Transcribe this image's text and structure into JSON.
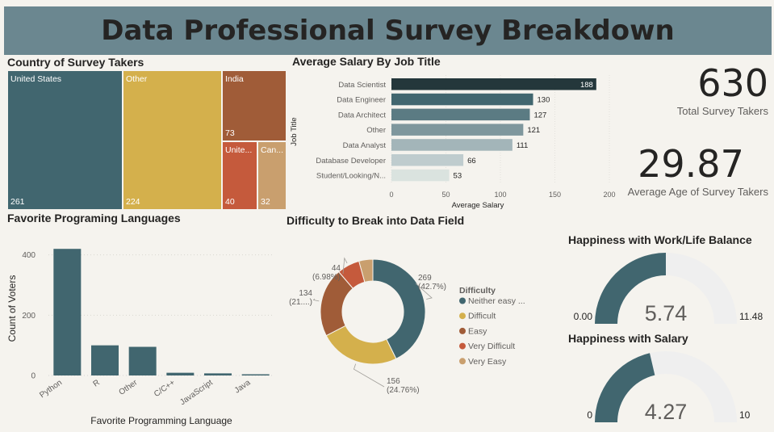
{
  "page": {
    "title": "Data Professional Survey Breakdown"
  },
  "country": {
    "title": "Country of Survey Takers",
    "items": [
      {
        "name": "United States",
        "value": "261",
        "color": "#41666f"
      },
      {
        "name": "Other",
        "value": "224",
        "color": "#d4b04c"
      },
      {
        "name": "India",
        "value": "73",
        "color": "#a05c38"
      },
      {
        "name": "Unite...",
        "value": "40",
        "color": "#c55a3c"
      },
      {
        "name": "Can...",
        "value": "32",
        "color": "#c99f6e"
      }
    ]
  },
  "kpis": {
    "total": {
      "value": "630",
      "label": "Total Survey Takers"
    },
    "age": {
      "value": "29.87",
      "label": "Average Age of Survey Takers"
    }
  },
  "gauges": {
    "work_life": {
      "title": "Happiness with Work/Life Balance",
      "value": "5.74",
      "min": "0.00",
      "max": "11.48",
      "fraction": 0.5,
      "color": "#41666f",
      "track": "#efefef"
    },
    "salary": {
      "title": "Happiness with Salary",
      "value": "4.27",
      "min": "0",
      "max": "10",
      "fraction": 0.427,
      "color": "#41666f",
      "track": "#efefef"
    }
  },
  "chart_data": [
    {
      "id": "salary",
      "type": "bar",
      "orientation": "horizontal",
      "title": "Average Salary By Job Title",
      "xlabel": "Average Salary",
      "ylabel": "Job Title",
      "categories": [
        "Data Scientist",
        "Data Engineer",
        "Data Architect",
        "Other",
        "Data Analyst",
        "Database Developer",
        "Student/Looking/N..."
      ],
      "values": [
        188,
        130,
        127,
        121,
        111,
        66,
        53
      ],
      "colors": [
        "#24373b",
        "#41666f",
        "#5b7b83",
        "#7f979d",
        "#a3b5b9",
        "#bfccce",
        "#dae3df"
      ],
      "xlim": [
        0,
        200
      ],
      "xticks": [
        "0",
        "50",
        "100",
        "150",
        "200"
      ],
      "data_labels": true
    },
    {
      "id": "languages",
      "type": "bar",
      "title": "Favorite Programing Languages",
      "xlabel": "Favorite Programming Language",
      "ylabel": "Count of Voters",
      "categories": [
        "Python",
        "R",
        "Other",
        "C/C++",
        "JavaScript",
        "Java"
      ],
      "values": [
        420,
        100,
        95,
        9,
        7,
        4
      ],
      "color": "#41666f",
      "ylim": [
        0,
        450
      ],
      "yticks": [
        "0",
        "200",
        "400"
      ]
    },
    {
      "id": "difficulty",
      "type": "pie",
      "donut": true,
      "title": "Difficulty to Break into Data Field",
      "legend_title": "Difficulty",
      "legend_position": "right",
      "slices": [
        {
          "name": "Neither easy ...",
          "value": 269,
          "label": "269",
          "pct": "(42.7%)",
          "color": "#41666f"
        },
        {
          "name": "Difficult",
          "value": 156,
          "label": "156",
          "pct": "(24.76%)",
          "color": "#d4b04c"
        },
        {
          "name": "Easy",
          "value": 134,
          "label": "134",
          "pct": "(21....)",
          "color": "#a05c38"
        },
        {
          "name": "Very Difficult",
          "value": 44,
          "label": "44",
          "pct": "(6.98%)",
          "color": "#c55a3c"
        },
        {
          "name": "Very Easy",
          "value": 27,
          "label": "",
          "pct": "",
          "color": "#c99f6e"
        }
      ]
    }
  ]
}
